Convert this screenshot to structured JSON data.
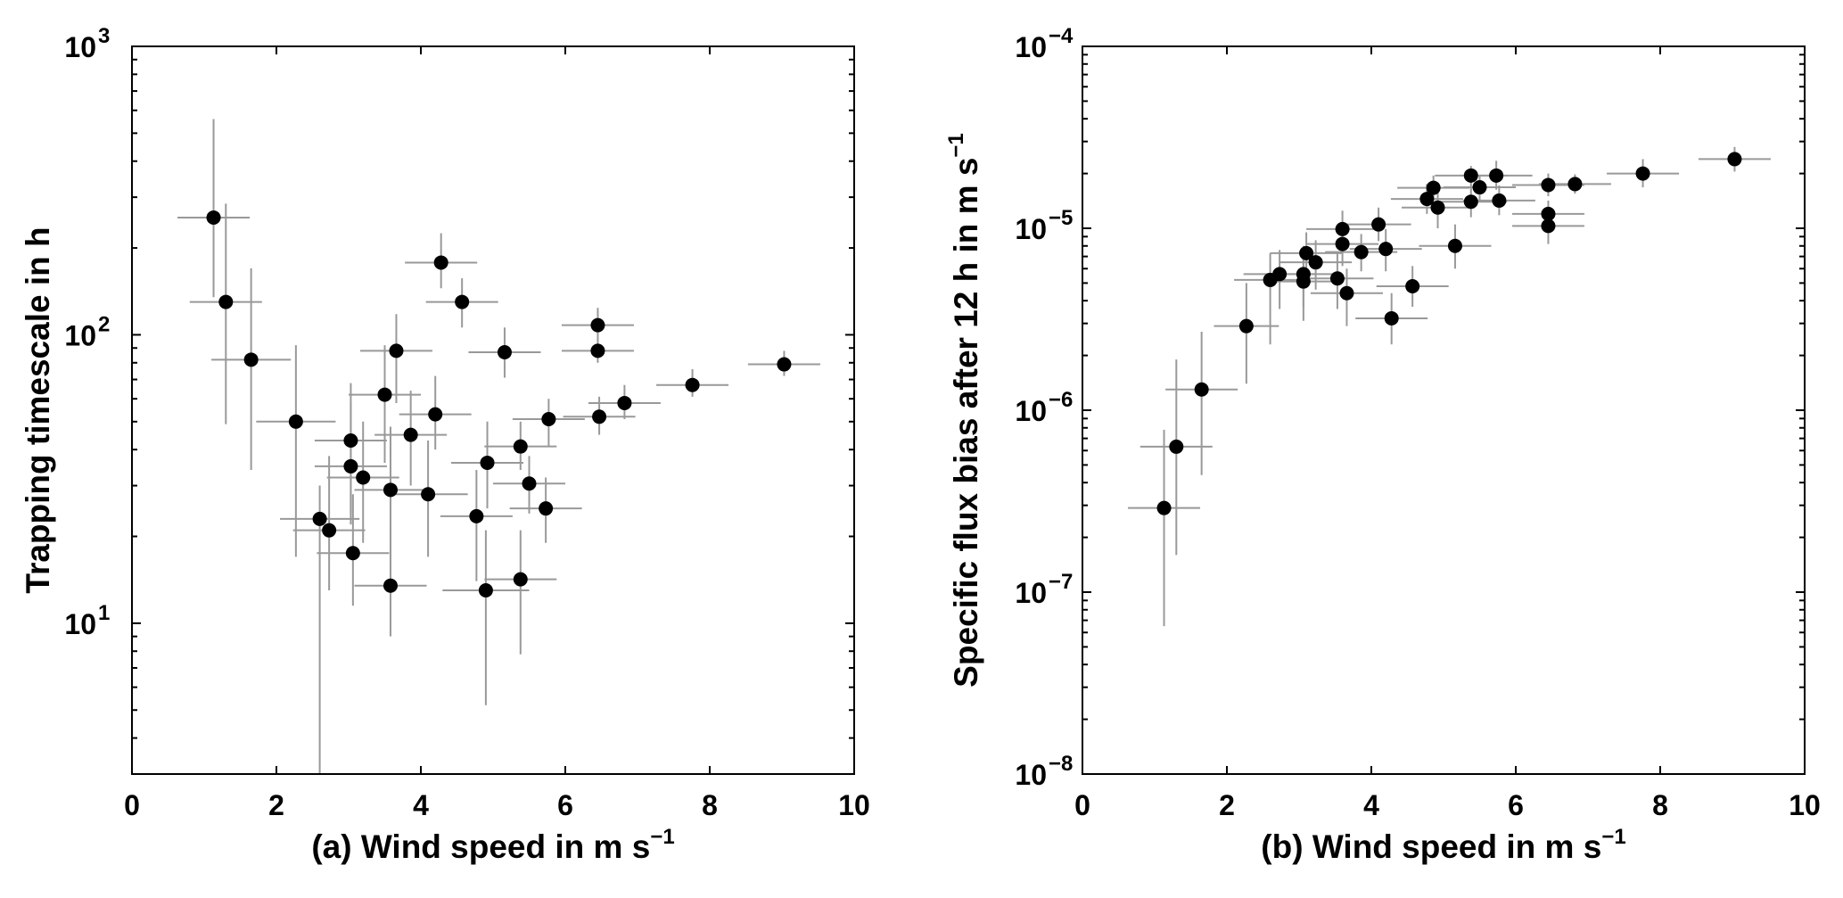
{
  "chart_data": [
    {
      "type": "scatter",
      "panel": "a",
      "xlabel": "(a) Wind speed in m s",
      "xlabel_sup": "−1",
      "ylabel": "Trapping timescale in h",
      "xlim": [
        0,
        10
      ],
      "ylim": [
        3,
        1000
      ],
      "yscale": "log",
      "grid": false,
      "x_ticks": [
        "0",
        "2",
        "4",
        "6",
        "8",
        "10"
      ],
      "y_ticks": [
        {
          "base": "10",
          "exp": "1",
          "value": 10
        },
        {
          "base": "10",
          "exp": "2",
          "value": 100
        },
        {
          "base": "10",
          "exp": "3",
          "value": 1000
        }
      ],
      "marker_color": "#000000",
      "errorbar_color": "#999999",
      "points": [
        {
          "x": 1.13,
          "y": 255,
          "xerr": 0.5,
          "ylo": 135,
          "yhi": 560
        },
        {
          "x": 1.3,
          "y": 130,
          "xerr": 0.5,
          "ylo": 49,
          "yhi": 285
        },
        {
          "x": 1.65,
          "y": 82,
          "xerr": 0.55,
          "ylo": 34,
          "yhi": 170
        },
        {
          "x": 2.27,
          "y": 50,
          "xerr": 0.55,
          "ylo": 17,
          "yhi": 92
        },
        {
          "x": 2.6,
          "y": 23,
          "xerr": 0.55,
          "ylo": 3,
          "yhi": 30
        },
        {
          "x": 2.73,
          "y": 21,
          "xerr": 0.5,
          "ylo": 13,
          "yhi": 38
        },
        {
          "x": 3.03,
          "y": 43,
          "xerr": 0.5,
          "ylo": 24,
          "yhi": 68
        },
        {
          "x": 3.03,
          "y": 35,
          "xerr": 0.5,
          "ylo": 22,
          "yhi": 58
        },
        {
          "x": 3.06,
          "y": 17.5,
          "xerr": 0.5,
          "ylo": 11.5,
          "yhi": 28
        },
        {
          "x": 3.2,
          "y": 32,
          "xerr": 0.5,
          "ylo": 19,
          "yhi": 50
        },
        {
          "x": 3.5,
          "y": 62,
          "xerr": 0.5,
          "ylo": 36,
          "yhi": 92
        },
        {
          "x": 3.58,
          "y": 29,
          "xerr": 0.5,
          "ylo": 17,
          "yhi": 48
        },
        {
          "x": 3.58,
          "y": 13.5,
          "xerr": 0.5,
          "ylo": 9,
          "yhi": 21
        },
        {
          "x": 3.66,
          "y": 88,
          "xerr": 0.5,
          "ylo": 58,
          "yhi": 118
        },
        {
          "x": 3.86,
          "y": 45,
          "xerr": 0.5,
          "ylo": 30,
          "yhi": 64
        },
        {
          "x": 4.1,
          "y": 28,
          "xerr": 0.55,
          "ylo": 17,
          "yhi": 43
        },
        {
          "x": 4.2,
          "y": 53,
          "xerr": 0.5,
          "ylo": 40,
          "yhi": 72
        },
        {
          "x": 4.28,
          "y": 178,
          "xerr": 0.5,
          "ylo": 145,
          "yhi": 225
        },
        {
          "x": 4.57,
          "y": 130,
          "xerr": 0.5,
          "ylo": 106,
          "yhi": 157
        },
        {
          "x": 4.77,
          "y": 23.5,
          "xerr": 0.5,
          "ylo": 14,
          "yhi": 34
        },
        {
          "x": 4.92,
          "y": 36,
          "xerr": 0.5,
          "ylo": 25,
          "yhi": 50
        },
        {
          "x": 4.9,
          "y": 13,
          "xerr": 0.6,
          "ylo": 5.2,
          "yhi": 21
        },
        {
          "x": 5.16,
          "y": 87,
          "xerr": 0.5,
          "ylo": 71,
          "yhi": 106
        },
        {
          "x": 5.38,
          "y": 41,
          "xerr": 0.5,
          "ylo": 34,
          "yhi": 50
        },
        {
          "x": 5.38,
          "y": 14.2,
          "xerr": 0.5,
          "ylo": 7.8,
          "yhi": 21
        },
        {
          "x": 5.5,
          "y": 30.5,
          "xerr": 0.5,
          "ylo": 24,
          "yhi": 38
        },
        {
          "x": 5.73,
          "y": 25,
          "xerr": 0.5,
          "ylo": 19,
          "yhi": 32
        },
        {
          "x": 5.77,
          "y": 51,
          "xerr": 0.5,
          "ylo": 41,
          "yhi": 60
        },
        {
          "x": 6.45,
          "y": 108,
          "xerr": 0.5,
          "ylo": 95,
          "yhi": 124
        },
        {
          "x": 6.45,
          "y": 88,
          "xerr": 0.5,
          "ylo": 80,
          "yhi": 97
        },
        {
          "x": 6.47,
          "y": 52,
          "xerr": 0.5,
          "ylo": 45,
          "yhi": 61
        },
        {
          "x": 6.82,
          "y": 58,
          "xerr": 0.5,
          "ylo": 51,
          "yhi": 67
        },
        {
          "x": 7.76,
          "y": 67,
          "xerr": 0.5,
          "ylo": 61,
          "yhi": 76
        },
        {
          "x": 9.03,
          "y": 79,
          "xerr": 0.5,
          "ylo": 72,
          "yhi": 88
        }
      ]
    },
    {
      "type": "scatter",
      "panel": "b",
      "xlabel": "(b) Wind speed in m s",
      "xlabel_sup": "−1",
      "ylabel": "Specific flux bias after 12 h in m s",
      "ylabel_sup": "−1",
      "xlim": [
        0,
        10
      ],
      "ylim": [
        1e-08,
        0.0001
      ],
      "yscale": "log",
      "grid": false,
      "x_ticks": [
        "0",
        "2",
        "4",
        "6",
        "8",
        "10"
      ],
      "y_ticks": [
        {
          "base": "10",
          "exp": "−8",
          "value": 1e-08
        },
        {
          "base": "10",
          "exp": "−7",
          "value": 1e-07
        },
        {
          "base": "10",
          "exp": "−6",
          "value": 1e-06
        },
        {
          "base": "10",
          "exp": "−5",
          "value": 1e-05
        },
        {
          "base": "10",
          "exp": "−4",
          "value": 0.0001
        }
      ],
      "marker_color": "#000000",
      "errorbar_color": "#999999",
      "points": [
        {
          "x": 1.13,
          "y": 2.9e-07,
          "xerr": 0.5,
          "ylo": 6.5e-08,
          "yhi": 7.8e-07
        },
        {
          "x": 1.3,
          "y": 6.3e-07,
          "xerr": 0.5,
          "ylo": 1.6e-07,
          "yhi": 1.9e-06
        },
        {
          "x": 1.65,
          "y": 1.3e-06,
          "xerr": 0.5,
          "ylo": 4.4e-07,
          "yhi": 2.7e-06
        },
        {
          "x": 2.27,
          "y": 2.9e-06,
          "xerr": 0.45,
          "ylo": 1.4e-06,
          "yhi": 5e-06
        },
        {
          "x": 2.6,
          "y": 5.2e-06,
          "xerr": 0.5,
          "ylo": 2.3e-06,
          "yhi": 7.3e-06
        },
        {
          "x": 2.73,
          "y": 5.6e-06,
          "xerr": 0.5,
          "ylo": 3.6e-06,
          "yhi": 7.6e-06
        },
        {
          "x": 3.06,
          "y": 5.1e-06,
          "xerr": 0.5,
          "ylo": 3.1e-06,
          "yhi": 7.4e-06
        },
        {
          "x": 3.06,
          "y": 5.6e-06,
          "xerr": 0.5,
          "ylo": 3.7e-06,
          "yhi": 8e-06
        },
        {
          "x": 3.1,
          "y": 7.3e-06,
          "xerr": 0.5,
          "ylo": 5.5e-06,
          "yhi": 9.5e-06
        },
        {
          "x": 3.23,
          "y": 6.5e-06,
          "xerr": 0.5,
          "ylo": 4.6e-06,
          "yhi": 8.6e-06
        },
        {
          "x": 3.53,
          "y": 5.3e-06,
          "xerr": 0.5,
          "ylo": 3.6e-06,
          "yhi": 7.3e-06
        },
        {
          "x": 3.6,
          "y": 9.9e-06,
          "xerr": 0.5,
          "ylo": 7.8e-06,
          "yhi": 1.25e-05
        },
        {
          "x": 3.6,
          "y": 8.2e-06,
          "xerr": 0.5,
          "ylo": 6.2e-06,
          "yhi": 1.05e-05
        },
        {
          "x": 3.66,
          "y": 4.4e-06,
          "xerr": 0.5,
          "ylo": 2.9e-06,
          "yhi": 6e-06
        },
        {
          "x": 3.86,
          "y": 7.4e-06,
          "xerr": 0.5,
          "ylo": 5.8e-06,
          "yhi": 9.3e-06
        },
        {
          "x": 4.1,
          "y": 1.05e-05,
          "xerr": 0.45,
          "ylo": 8.5e-06,
          "yhi": 1.3e-05
        },
        {
          "x": 4.2,
          "y": 7.7e-06,
          "xerr": 0.5,
          "ylo": 5.8e-06,
          "yhi": 9.9e-06
        },
        {
          "x": 4.28,
          "y": 3.2e-06,
          "xerr": 0.5,
          "ylo": 2.3e-06,
          "yhi": 4.4e-06
        },
        {
          "x": 4.57,
          "y": 4.8e-06,
          "xerr": 0.5,
          "ylo": 3.7e-06,
          "yhi": 6.2e-06
        },
        {
          "x": 4.77,
          "y": 1.45e-05,
          "xerr": 0.5,
          "ylo": 1.2e-05,
          "yhi": 1.75e-05
        },
        {
          "x": 4.86,
          "y": 1.67e-05,
          "xerr": 0.5,
          "ylo": 1.42e-05,
          "yhi": 1.95e-05
        },
        {
          "x": 4.92,
          "y": 1.3e-05,
          "xerr": 0.5,
          "ylo": 1e-05,
          "yhi": 1.6e-05
        },
        {
          "x": 5.16,
          "y": 8e-06,
          "xerr": 0.5,
          "ylo": 6e-06,
          "yhi": 1.05e-05
        },
        {
          "x": 5.38,
          "y": 1.95e-05,
          "xerr": 0.5,
          "ylo": 1.7e-05,
          "yhi": 2.2e-05
        },
        {
          "x": 5.38,
          "y": 1.4e-05,
          "xerr": 0.5,
          "ylo": 1.15e-05,
          "yhi": 1.7e-05
        },
        {
          "x": 5.5,
          "y": 1.68e-05,
          "xerr": 0.5,
          "ylo": 1.43e-05,
          "yhi": 1.95e-05
        },
        {
          "x": 5.73,
          "y": 1.95e-05,
          "xerr": 0.5,
          "ylo": 1.63e-05,
          "yhi": 2.35e-05
        },
        {
          "x": 5.77,
          "y": 1.42e-05,
          "xerr": 0.5,
          "ylo": 1.18e-05,
          "yhi": 1.72e-05
        },
        {
          "x": 6.45,
          "y": 1.73e-05,
          "xerr": 0.5,
          "ylo": 1.5e-05,
          "yhi": 2e-05
        },
        {
          "x": 6.45,
          "y": 1.2e-05,
          "xerr": 0.5,
          "ylo": 1e-05,
          "yhi": 1.42e-05
        },
        {
          "x": 6.45,
          "y": 1.03e-05,
          "xerr": 0.5,
          "ylo": 8.2e-06,
          "yhi": 1.25e-05
        },
        {
          "x": 6.82,
          "y": 1.75e-05,
          "xerr": 0.5,
          "ylo": 1.55e-05,
          "yhi": 1.98e-05
        },
        {
          "x": 7.76,
          "y": 2e-05,
          "xerr": 0.5,
          "ylo": 1.68e-05,
          "yhi": 2.4e-05
        },
        {
          "x": 9.03,
          "y": 2.4e-05,
          "xerr": 0.5,
          "ylo": 2.05e-05,
          "yhi": 2.8e-05
        }
      ]
    }
  ]
}
